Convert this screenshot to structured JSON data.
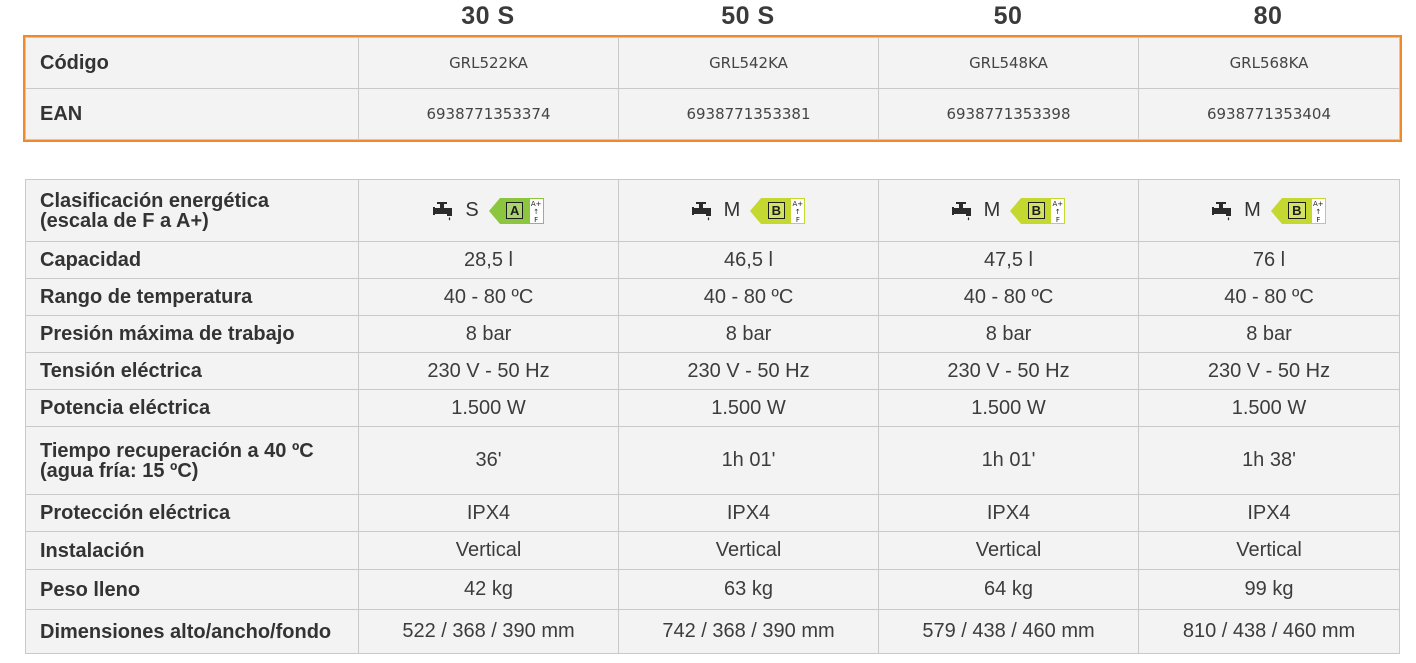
{
  "models": [
    "30 S",
    "50 S",
    "50",
    "80"
  ],
  "codes": {
    "rows": [
      {
        "label": "Código",
        "values": [
          "GRL522KA",
          "GRL542KA",
          "GRL548KA",
          "GRL568KA"
        ]
      },
      {
        "label": "EAN",
        "values": [
          "6938771353374",
          "6938771353381",
          "6938771353398",
          "6938771353404"
        ]
      }
    ]
  },
  "specs": {
    "energy": {
      "label_line1": "Clasificación energética",
      "label_line2": "(escala de F a A+)",
      "items": [
        {
          "icon": "tap-icon",
          "size": "S",
          "class": "A",
          "scale": "A+ ↑ F"
        },
        {
          "icon": "tap-icon",
          "size": "M",
          "class": "B",
          "scale": "A+ ↑ F"
        },
        {
          "icon": "tap-icon",
          "size": "M",
          "class": "B",
          "scale": "A+ ↑ F"
        },
        {
          "icon": "tap-icon",
          "size": "M",
          "class": "B",
          "scale": "A+ ↑ F"
        }
      ],
      "colors": {
        "A": "#8cc63f",
        "B": "#c5d82f"
      }
    },
    "rows": [
      {
        "label": "Capacidad",
        "values": [
          "28,5 l",
          "46,5 l",
          "47,5 l",
          "76 l"
        ]
      },
      {
        "label": "Rango de temperatura",
        "values": [
          "40 - 80 ºC",
          "40 - 80 ºC",
          "40 - 80 ºC",
          "40 - 80 ºC"
        ]
      },
      {
        "label": "Presión máxima de trabajo",
        "values": [
          "8 bar",
          "8 bar",
          "8 bar",
          "8 bar"
        ]
      },
      {
        "label": "Tensión eléctrica",
        "values": [
          "230 V - 50 Hz",
          "230 V - 50 Hz",
          "230 V - 50 Hz",
          "230 V - 50 Hz"
        ]
      },
      {
        "label": "Potencia eléctrica",
        "values": [
          "1.500 W",
          "1.500 W",
          "1.500 W",
          "1.500 W"
        ]
      }
    ],
    "recovery": {
      "label_line1": "Tiempo recuperación a 40 ºC",
      "label_line2": "(agua fría: 15 ºC)",
      "values": [
        "36'",
        "1h 01'",
        "1h 01'",
        "1h 38'"
      ]
    },
    "rows2": [
      {
        "label": "Protección eléctrica",
        "values": [
          "IPX4",
          "IPX4",
          "IPX4",
          "IPX4"
        ]
      },
      {
        "label": "Instalación",
        "values": [
          "Vertical",
          "Vertical",
          "Vertical",
          "Vertical"
        ]
      },
      {
        "label": "Peso lleno",
        "values": [
          "42 kg",
          "63 kg",
          "64 kg",
          "99 kg"
        ]
      },
      {
        "label": "Dimensiones alto/ancho/fondo",
        "values": [
          "522 / 368 / 390 mm",
          "742 / 368 / 390 mm",
          "579 / 438 / 460 mm",
          "810 / 438 / 460 mm"
        ]
      }
    ]
  },
  "accent_color": "#ef8a2b"
}
